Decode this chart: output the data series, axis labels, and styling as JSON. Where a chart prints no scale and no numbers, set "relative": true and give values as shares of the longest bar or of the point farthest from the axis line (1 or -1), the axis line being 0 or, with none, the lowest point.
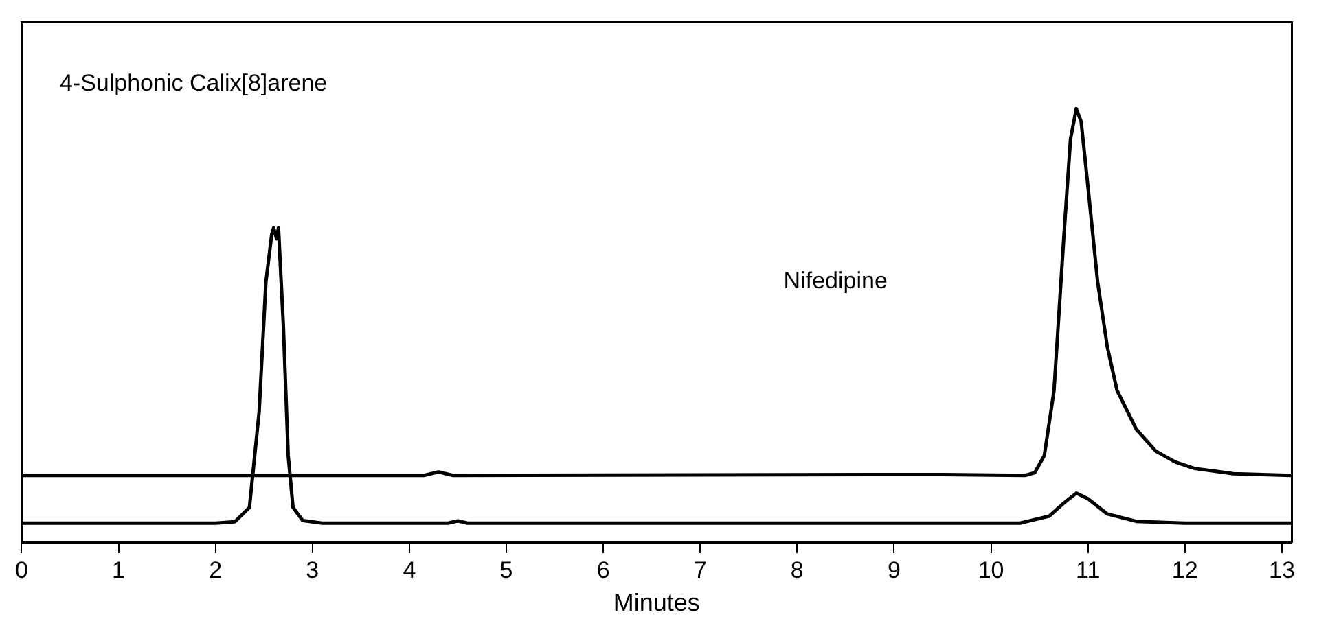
{
  "chart_data": {
    "type": "line",
    "relative": true,
    "xlabel": "Minutes",
    "xlim": [
      0,
      13.1
    ],
    "xticks": [
      0,
      1,
      2,
      3,
      4,
      5,
      6,
      7,
      8,
      9,
      10,
      11,
      12,
      13
    ],
    "grid": false,
    "legend": false,
    "marker": "none",
    "line_style": "solid",
    "tick_labels": "x",
    "annotations": [
      "4-Sulphonic Calix[8]arene",
      "Nifedipine"
    ],
    "series": [
      {
        "color": "#000000",
        "x": [
          0,
          4.15,
          4.3,
          4.45,
          9.0,
          9.5,
          10.35,
          10.45,
          10.55,
          10.65,
          10.75,
          10.82,
          10.88,
          10.93,
          11.0,
          11.1,
          11.2,
          11.3,
          11.5,
          11.7,
          11.9,
          12.1,
          12.5,
          13.1
        ],
        "values": [
          0.154,
          0.154,
          0.162,
          0.154,
          0.156,
          0.156,
          0.154,
          0.16,
          0.2,
          0.35,
          0.7,
          0.93,
          1,
          0.97,
          0.82,
          0.6,
          0.45,
          0.35,
          0.26,
          0.21,
          0.185,
          0.17,
          0.158,
          0.154
        ]
      },
      {
        "color": "#000000",
        "x": [
          0,
          2.0,
          2.2,
          2.35,
          2.45,
          2.52,
          2.58,
          2.6,
          2.63,
          2.65,
          2.7,
          2.75,
          2.8,
          2.9,
          3.1,
          4.4,
          4.5,
          4.6,
          10.3,
          10.6,
          10.75,
          10.88,
          11.0,
          11.2,
          11.5,
          12.0,
          13.1
        ],
        "values": [
          0.044,
          0.044,
          0.047,
          0.08,
          0.3,
          0.6,
          0.71,
          0.725,
          0.7,
          0.725,
          0.5,
          0.2,
          0.08,
          0.05,
          0.044,
          0.044,
          0.049,
          0.044,
          0.044,
          0.06,
          0.09,
          0.113,
          0.1,
          0.065,
          0.048,
          0.044,
          0.044
        ]
      }
    ]
  }
}
